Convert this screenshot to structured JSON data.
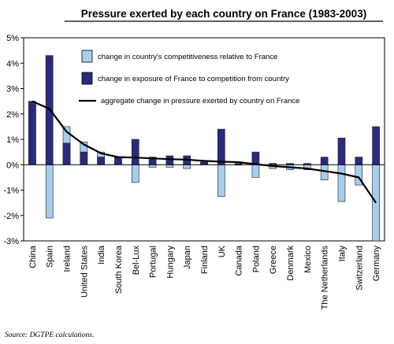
{
  "chart_data": {
    "type": "bar",
    "title": "Pressure exerted by each country on France (1983-2003)",
    "source": "Source: DGTPE calculations.",
    "ylim": [
      -3,
      5
    ],
    "yticks": [
      "-3%",
      "-2%",
      "-1%",
      "0%",
      "1%",
      "2%",
      "3%",
      "4%",
      "5%"
    ],
    "grid": false,
    "legend_position": "top-center",
    "categories": [
      "China",
      "Spain",
      "Ireland",
      "United States",
      "India",
      "South Korea",
      "Bel-Lux",
      "Portugal",
      "Hungary",
      "Japan",
      "Finland",
      "UK",
      "Canada",
      "Poland",
      "Greece",
      "Denmark",
      "Mexico",
      "The Netherlands",
      "Italy",
      "Switzerland",
      "Germany"
    ],
    "series": [
      {
        "name": "change in country's competitiveness relative to France",
        "type": "bar",
        "color": "#a6cdee",
        "values": [
          2.4,
          -2.1,
          1.5,
          0.9,
          0.5,
          0.1,
          -0.7,
          -0.1,
          -0.1,
          -0.15,
          0.1,
          -1.25,
          0.0,
          -0.5,
          -0.15,
          -0.2,
          -0.2,
          -0.6,
          -1.45,
          -0.8,
          -3.0
        ]
      },
      {
        "name": "change in exposure of France to competition from country",
        "type": "bar",
        "color": "#2a2a7e",
        "values": [
          2.5,
          4.3,
          0.85,
          0.5,
          0.3,
          0.3,
          1.0,
          0.3,
          0.35,
          0.35,
          0.1,
          1.4,
          0.05,
          0.5,
          0.05,
          0.05,
          0.05,
          0.3,
          1.05,
          0.3,
          1.5
        ]
      },
      {
        "name": "aggregate change in pressure exerted by country on France",
        "type": "line",
        "color": "#000000",
        "values": [
          2.5,
          2.2,
          1.3,
          0.8,
          0.45,
          0.3,
          0.28,
          0.25,
          0.22,
          0.2,
          0.15,
          0.12,
          0.1,
          0.02,
          -0.05,
          -0.1,
          -0.15,
          -0.25,
          -0.35,
          -0.5,
          -1.5
        ]
      }
    ]
  }
}
